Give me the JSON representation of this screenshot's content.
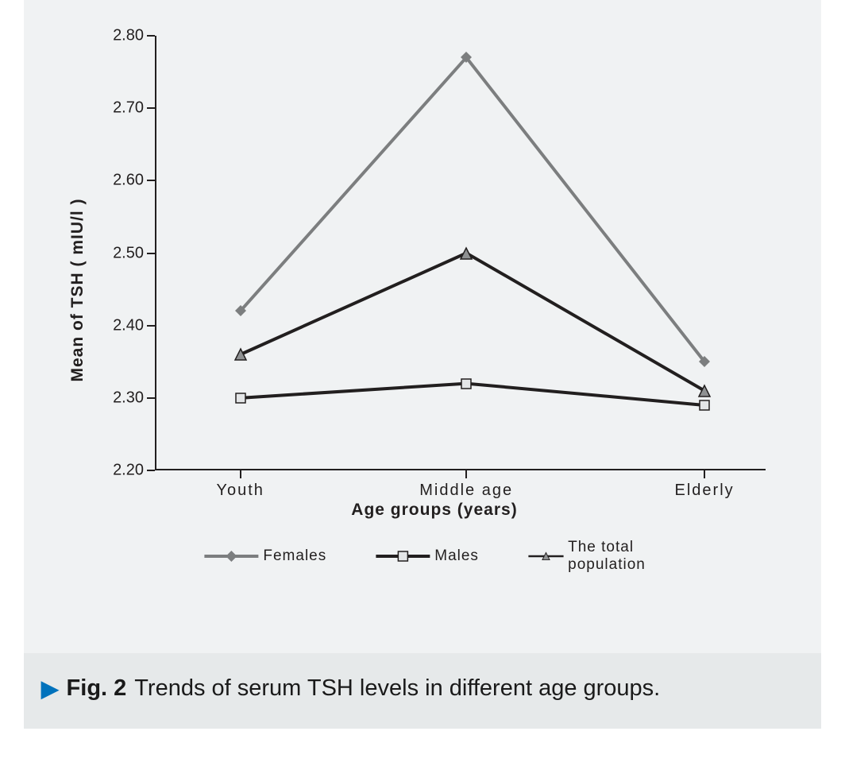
{
  "chart": {
    "type": "line",
    "background_color": "#f0f2f3",
    "outer_background_color": "#e6e9ea",
    "axis_color": "#221f1f",
    "y_axis": {
      "title": "Mean of TSH  ( mIU/l )",
      "min": 2.2,
      "max": 2.8,
      "ticks": [
        2.2,
        2.3,
        2.4,
        2.5,
        2.6,
        2.7,
        2.8
      ],
      "tick_label_fontsize": 20,
      "title_fontsize": 21
    },
    "x_axis": {
      "title": "Age groups (years)",
      "categories": [
        "Youth",
        "Middle age",
        "Elderly"
      ],
      "category_positions_pct": [
        14,
        51,
        90
      ],
      "tick_label_fontsize": 20,
      "title_fontsize": 21
    },
    "series": [
      {
        "name": "Females",
        "values": [
          2.42,
          2.77,
          2.35
        ],
        "color": "#7c7e7f",
        "line_width": 4,
        "marker": "diamond",
        "marker_size": 14,
        "marker_fill": "#7c7e7f"
      },
      {
        "name": "Males",
        "values": [
          2.3,
          2.32,
          2.29
        ],
        "color": "#221f1f",
        "line_width": 4,
        "marker": "square",
        "marker_size": 12,
        "marker_fill": "#e4e6e7",
        "marker_stroke": "#221f1f"
      },
      {
        "name": "The total population",
        "values": [
          2.36,
          2.5,
          2.31
        ],
        "color": "#221f1f",
        "line_width": 4,
        "marker": "triangle",
        "marker_size": 14,
        "marker_fill": "#8f9192",
        "marker_stroke": "#221f1f"
      }
    ],
    "legend": {
      "position": "bottom",
      "fontsize": 19
    }
  },
  "caption": {
    "arrow_color": "#0072bc",
    "label": "Fig. 2",
    "text": "Trends of serum TSH levels in different age groups."
  }
}
